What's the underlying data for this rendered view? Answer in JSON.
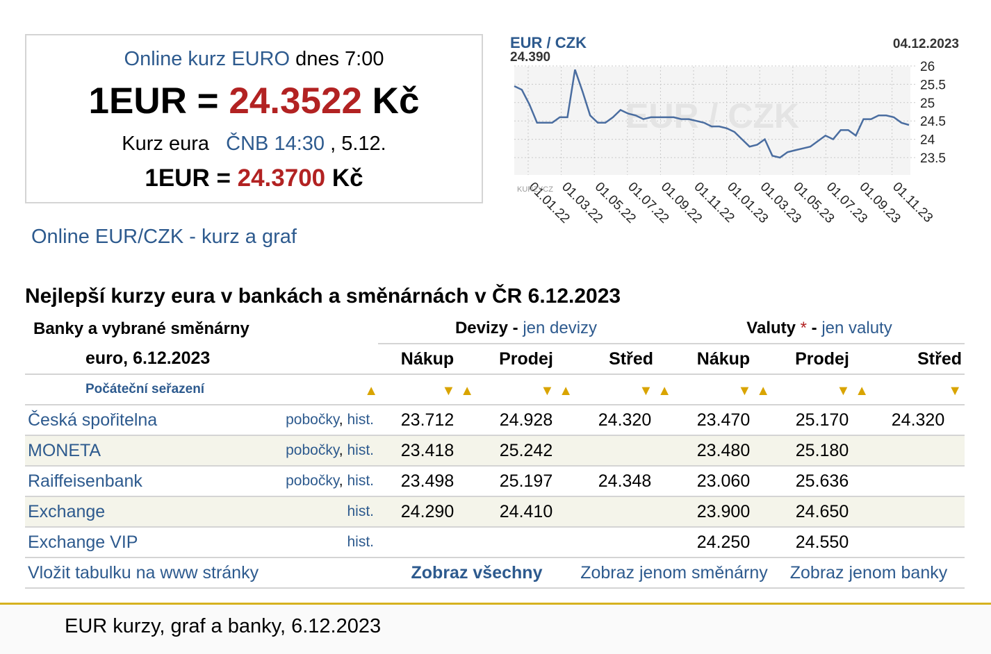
{
  "box": {
    "line1_link": "Online kurz EURO",
    "line1_rest": "dnes 7:00",
    "line2_lhs": "1EUR =",
    "line2_value": "24.3522",
    "line2_unit": "Kč",
    "line3_pre": "Kurz eura",
    "line3_link": "ČNB 14:30",
    "line3_post": ", 5.12.",
    "line4_lhs": "1EUR =",
    "line4_value": "24.3700",
    "line4_unit": "Kč"
  },
  "online_link": "Online EUR/CZK - kurz a graf",
  "chart": {
    "title": "EUR / CZK",
    "last_value": "24.390",
    "date": "04.12.2023",
    "watermark": "EUR / CZK",
    "brand": "KURZYCZ",
    "colors": {
      "line": "#4a6da0",
      "grid": "#cccccc",
      "fill": "#f4f4f4",
      "title": "#2d5a8e"
    }
  },
  "chart_data": {
    "type": "line",
    "title": "EUR / CZK",
    "x_ticks": [
      "01.01.22",
      "01.03.22",
      "01.05.22",
      "01.07.22",
      "01.09.22",
      "01.11.22",
      "01.01.23",
      "01.03.23",
      "01.05.23",
      "01.07.23",
      "01.09.23",
      "01.11.23"
    ],
    "y_ticks": [
      "26",
      "25.5",
      "25",
      "24.5",
      "24",
      "23.5"
    ],
    "ylim": [
      23.5,
      26
    ],
    "series": [
      {
        "values": [
          25.45,
          25.35,
          24.95,
          24.45,
          24.45,
          24.45,
          24.6,
          24.6,
          25.9,
          25.3,
          24.65,
          24.45,
          24.45,
          24.6,
          24.8,
          24.7,
          24.65,
          24.55,
          24.6,
          24.6,
          24.6,
          24.6,
          24.55,
          24.55,
          24.5,
          24.45,
          24.35,
          24.35,
          24.3,
          24.2,
          24.0,
          23.8,
          23.85,
          24.0,
          23.55,
          23.5,
          23.65,
          23.7,
          23.75,
          23.8,
          23.95,
          24.1,
          24.0,
          24.25,
          24.25,
          24.1,
          24.55,
          24.55,
          24.65,
          24.65,
          24.6,
          24.45,
          24.39
        ]
      }
    ]
  },
  "heading": "Nejlepší kurzy eura v bankách a směnárnách v ČR 6.12.2023",
  "table": {
    "left_title_1": "Banky a vybrané směnárny",
    "left_title_2": "euro, 6.12.2023",
    "devizy_label": "Devizy",
    "devizy_sep": " - ",
    "devizy_link": "jen devizy",
    "valuty_label": "Valuty",
    "valuty_star": "*",
    "valuty_sep": " - ",
    "valuty_link": "jen valuty",
    "col_buy": "Nákup",
    "col_sell": "Prodej",
    "col_mid": "Střed",
    "sort_label": "Počáteční seřazení",
    "branches": "pobočky",
    "comma": ",",
    "hist": "hist.",
    "rows": [
      {
        "name": "Česká spořitelna",
        "dev_buy": "23.712",
        "dev_sell": "24.928",
        "dev_mid": "24.320",
        "val_buy": "23.470",
        "val_sell": "25.170",
        "val_mid": "24.320"
      },
      {
        "name": "MONETA",
        "dev_buy": "23.418",
        "dev_sell": "25.242",
        "dev_mid": "",
        "val_buy": "23.480",
        "val_sell": "25.180",
        "val_mid": ""
      },
      {
        "name": "Raiffeisenbank",
        "dev_buy": "23.498",
        "dev_sell": "25.197",
        "dev_mid": "24.348",
        "val_buy": "23.060",
        "val_sell": "25.636",
        "val_mid": ""
      },
      {
        "name": "Exchange",
        "dev_buy": "24.290",
        "dev_sell": "24.410",
        "dev_mid": "",
        "val_buy": "23.900",
        "val_sell": "24.650",
        "val_mid": ""
      },
      {
        "name": "Exchange VIP",
        "dev_buy": "",
        "dev_sell": "",
        "dev_mid": "",
        "val_buy": "24.250",
        "val_sell": "24.550",
        "val_mid": ""
      }
    ],
    "embed_link": "Vložit tabulku na www stránky",
    "show_all": "Zobraz všechny",
    "show_exchanges": "Zobraz jenom směnárny",
    "show_banks": "Zobraz jenom banky"
  },
  "footer": "EUR kurzy, graf a banky, 6.12.2023",
  "colors": {
    "link": "#2d5a8e",
    "value_red": "#b22222",
    "footer_line": "#d6b21f",
    "sort_arrow": "#d9a400"
  }
}
